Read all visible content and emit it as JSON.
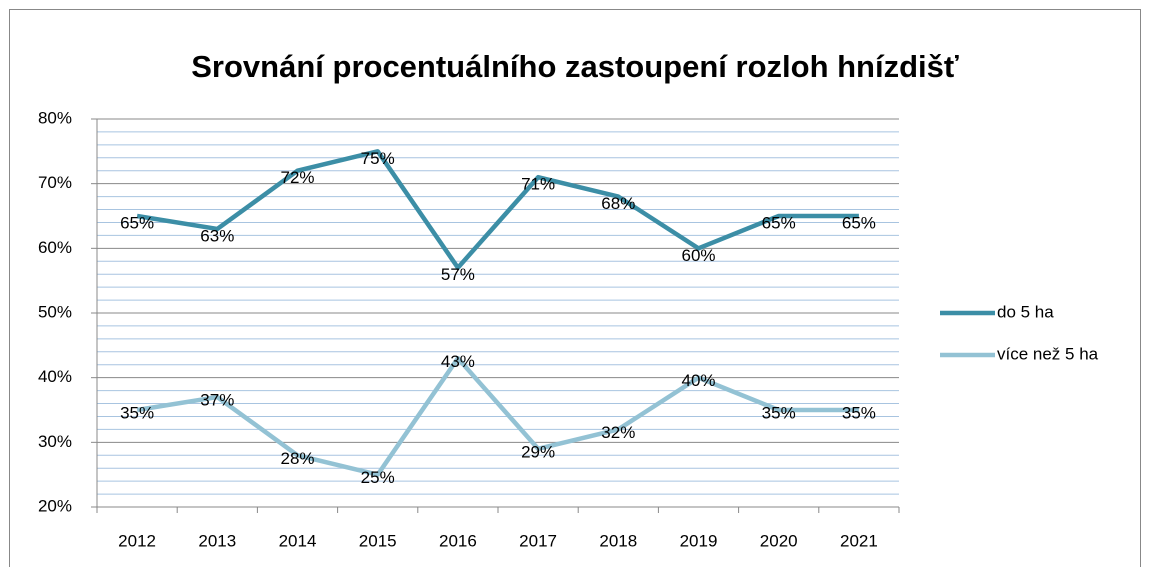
{
  "chart_data": {
    "type": "line",
    "title": "Srovnání procentuálního zastoupení rozloh hnízdišť",
    "categories": [
      "2012",
      "2013",
      "2014",
      "2015",
      "2016",
      "2017",
      "2018",
      "2019",
      "2020",
      "2021"
    ],
    "series": [
      {
        "name": "do 5 ha",
        "color": "#3c8ea6",
        "values": [
          65,
          63,
          72,
          75,
          57,
          71,
          68,
          60,
          65,
          65
        ],
        "value_labels": [
          "65%",
          "63%",
          "72%",
          "75%",
          "57%",
          "71%",
          "68%",
          "60%",
          "65%",
          "65%"
        ]
      },
      {
        "name": "více než 5 ha",
        "color": "#93c2d4",
        "values": [
          35,
          37,
          28,
          25,
          43,
          29,
          32,
          40,
          35,
          35
        ],
        "value_labels": [
          "35%",
          "37%",
          "28%",
          "25%",
          "43%",
          "29%",
          "32%",
          "40%",
          "35%",
          "35%"
        ]
      }
    ],
    "ylim": [
      20,
      80
    ],
    "yticks": [
      {
        "value": 20,
        "label": "20%"
      },
      {
        "value": 30,
        "label": "30%"
      },
      {
        "value": 40,
        "label": "40%"
      },
      {
        "value": 50,
        "label": "50%"
      },
      {
        "value": 60,
        "label": "60%"
      },
      {
        "value": 70,
        "label": "70%"
      },
      {
        "value": 80,
        "label": "80%"
      }
    ],
    "yminorticks": [
      22,
      24,
      26,
      28,
      32,
      34,
      36,
      38,
      42,
      44,
      46,
      48,
      52,
      54,
      56,
      58,
      62,
      64,
      66,
      68,
      72,
      74,
      76,
      78
    ],
    "grid": true,
    "legend": "right"
  }
}
